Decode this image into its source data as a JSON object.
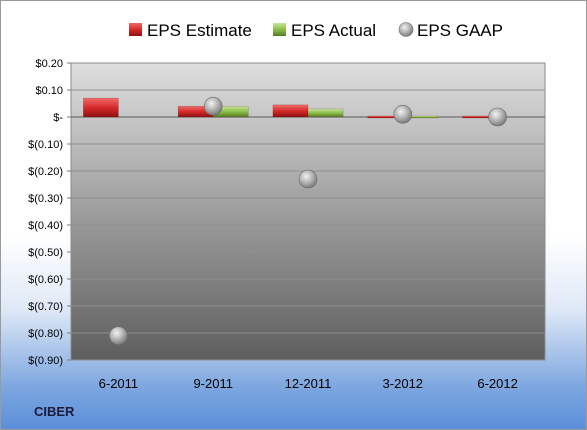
{
  "chart_data": {
    "type": "bar",
    "categories": [
      "6-2011",
      "9-2011",
      "12-2011",
      "3-2012",
      "6-2012"
    ],
    "series": [
      {
        "name": "EPS Estimate",
        "kind": "bar",
        "color": "#d62a2a",
        "values": [
          0.07,
          0.04,
          0.045,
          -0.005,
          -0.005
        ]
      },
      {
        "name": "EPS Actual",
        "kind": "bar",
        "color": "#8cbf4a",
        "values": [
          null,
          0.04,
          0.03,
          -0.005,
          null
        ]
      },
      {
        "name": "EPS GAAP",
        "kind": "marker",
        "color": "#9a9a9a",
        "values": [
          -0.81,
          0.04,
          -0.23,
          0.01,
          0.0
        ]
      }
    ],
    "ylim": [
      -0.9,
      0.2
    ],
    "yticks": [
      0.2,
      0.1,
      0,
      -0.1,
      -0.2,
      -0.3,
      -0.4,
      -0.5,
      -0.6,
      -0.7,
      -0.8,
      -0.9
    ],
    "ytick_labels": [
      "$0.20",
      "$0.10",
      "$-",
      "$(0.10)",
      "$(0.20)",
      "$(0.30)",
      "$(0.40)",
      "$(0.50)",
      "$(0.60)",
      "$(0.70)",
      "$(0.80)",
      "$(0.90)"
    ],
    "grid": true,
    "legend_position": "top",
    "title": "",
    "xlabel": "",
    "ylabel": ""
  },
  "company_label": "CIBER"
}
